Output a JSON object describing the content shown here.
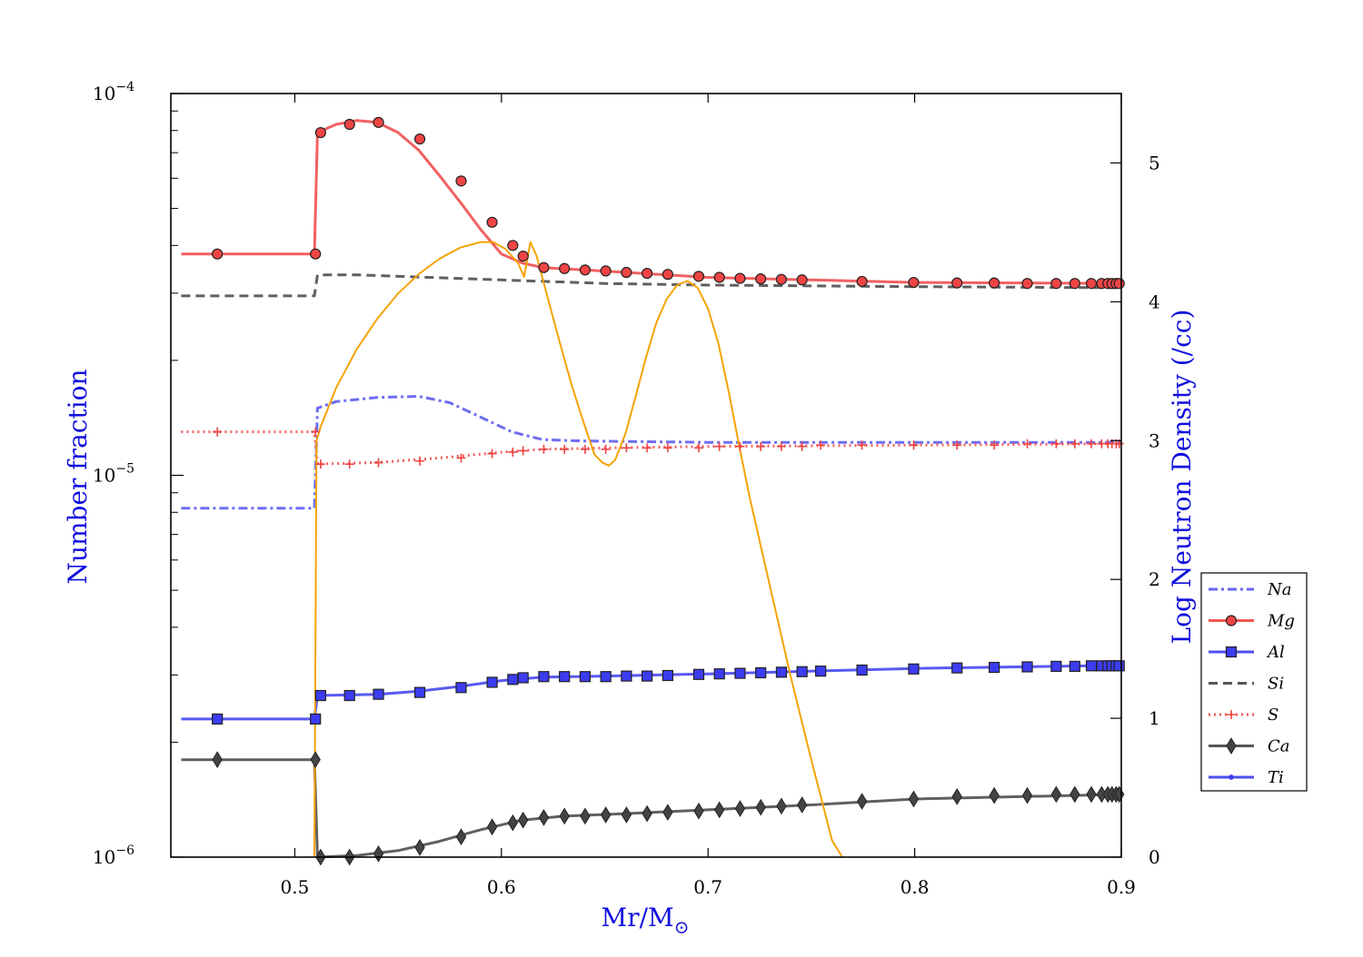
{
  "chart_data": {
    "type": "line",
    "xlabel": "Mr/M",
    "xlabel_symbol": "⊙",
    "ylabel_left": "Number fraction",
    "ylabel_right": "Log Neutron Density (/cc)",
    "xlim": [
      0.44,
      0.9
    ],
    "ylim_left": [
      1e-06,
      0.0001
    ],
    "ylim_right": [
      0,
      5.5
    ],
    "left_scale": "log",
    "x_ticks": [
      "0.5",
      "0.6",
      "0.7",
      "0.8",
      "0.9"
    ],
    "left_ticks": [
      {
        "base": "10",
        "exp": "−4"
      },
      {
        "base": "10",
        "exp": "−5"
      },
      {
        "base": "10",
        "exp": "−6"
      }
    ],
    "right_ticks": [
      "0",
      "1",
      "2",
      "3",
      "4",
      "5"
    ],
    "legend_position": "right",
    "colors": {
      "red": "#ee4444",
      "blue": "#3c3cf0",
      "gray": "#444444",
      "orange": "#f5a300"
    },
    "legend": [
      {
        "label": "Na",
        "color": "#5555f0",
        "dash": "10,4,3,4",
        "marker": "none"
      },
      {
        "label": "Mg",
        "color": "#ee4444",
        "dash": "",
        "marker": "circle"
      },
      {
        "label": "Al",
        "color": "#3c3cf0",
        "dash": "",
        "marker": "square"
      },
      {
        "label": "Si",
        "color": "#444444",
        "dash": "10,6",
        "marker": "none"
      },
      {
        "label": "S",
        "color": "#ee4444",
        "dash": "2,4",
        "marker": "plus"
      },
      {
        "label": "Ca",
        "color": "#444444",
        "dash": "",
        "marker": "diamond"
      },
      {
        "label": "Ti",
        "color": "#3c3cf0",
        "dash": "",
        "marker": "dot"
      }
    ],
    "series": [
      {
        "name": "Na",
        "axis": "left",
        "color": "#5555f0",
        "dash": "10,4,3,4",
        "marker": "none",
        "x": [
          0.445,
          0.5095,
          0.511,
          0.52,
          0.54,
          0.56,
          0.575,
          0.59,
          0.605,
          0.62,
          0.64,
          0.7,
          0.8,
          0.9
        ],
        "y": [
          8.2e-06,
          8.2e-06,
          1.5e-05,
          1.56e-05,
          1.6e-05,
          1.61e-05,
          1.55e-05,
          1.42e-05,
          1.3e-05,
          1.24e-05,
          1.23e-05,
          1.22e-05,
          1.22e-05,
          1.22e-05
        ]
      },
      {
        "name": "Mg",
        "axis": "left",
        "color": "#ee4444",
        "dash": "",
        "marker": "circle",
        "x": [
          0.445,
          0.5095,
          0.511,
          0.52,
          0.53,
          0.54,
          0.55,
          0.56,
          0.57,
          0.58,
          0.59,
          0.6,
          0.61,
          0.62,
          0.64,
          0.66,
          0.68,
          0.7,
          0.75,
          0.8,
          0.9
        ],
        "y": [
          3.8e-05,
          3.8e-05,
          7.9e-05,
          8.3e-05,
          8.5e-05,
          8.4e-05,
          7.9e-05,
          7.1e-05,
          6.1e-05,
          5.2e-05,
          4.4e-05,
          3.8e-05,
          3.6e-05,
          3.5e-05,
          3.45e-05,
          3.4e-05,
          3.35e-05,
          3.3e-05,
          3.25e-05,
          3.2e-05,
          3.18e-05
        ],
        "marker_x": [
          0.4625,
          0.51,
          0.5125,
          0.5265,
          0.5405,
          0.5605,
          0.5805,
          0.5955,
          0.6055,
          0.6105,
          0.6205,
          0.6305,
          0.6405,
          0.6505,
          0.6605,
          0.6705,
          0.6805,
          0.6955,
          0.7055,
          0.7155,
          0.7255,
          0.7355,
          0.7455,
          0.7745,
          0.7995,
          0.8205,
          0.8385,
          0.8545,
          0.8685,
          0.8775,
          0.8855,
          0.8905,
          0.8935,
          0.8955,
          0.8975,
          0.899
        ],
        "marker_y": [
          3.8e-05,
          3.8e-05,
          7.9e-05,
          8.3e-05,
          8.4e-05,
          7.6e-05,
          5.9e-05,
          4.6e-05,
          4e-05,
          3.75e-05,
          3.5e-05,
          3.48e-05,
          3.45e-05,
          3.43e-05,
          3.4e-05,
          3.38e-05,
          3.36e-05,
          3.32e-05,
          3.3e-05,
          3.28e-05,
          3.27e-05,
          3.26e-05,
          3.25e-05,
          3.22e-05,
          3.2e-05,
          3.19e-05,
          3.19e-05,
          3.18e-05,
          3.18e-05,
          3.18e-05,
          3.18e-05,
          3.18e-05,
          3.18e-05,
          3.18e-05,
          3.18e-05,
          3.18e-05
        ]
      },
      {
        "name": "Al",
        "axis": "left",
        "color": "#3c3cf0",
        "dash": "",
        "marker": "square",
        "x": [
          0.445,
          0.5095,
          0.511,
          0.54,
          0.56,
          0.58,
          0.6,
          0.62,
          0.65,
          0.7,
          0.8,
          0.9
        ],
        "y": [
          2.3e-06,
          2.3e-06,
          2.65e-06,
          2.67e-06,
          2.72e-06,
          2.8e-06,
          2.9e-06,
          2.96e-06,
          2.98e-06,
          3.02e-06,
          3.12e-06,
          3.18e-06
        ],
        "marker_x": [
          0.4625,
          0.51,
          0.5125,
          0.5265,
          0.5405,
          0.5605,
          0.5805,
          0.5955,
          0.6055,
          0.6105,
          0.6205,
          0.6305,
          0.6405,
          0.6505,
          0.6605,
          0.6705,
          0.6805,
          0.6955,
          0.7055,
          0.7155,
          0.7255,
          0.7355,
          0.7455,
          0.7545,
          0.7745,
          0.7995,
          0.8205,
          0.8385,
          0.8545,
          0.8685,
          0.8775,
          0.8855,
          0.8905,
          0.8935,
          0.8955,
          0.8975,
          0.899
        ],
        "marker_y": [
          2.3e-06,
          2.3e-06,
          2.65e-06,
          2.65e-06,
          2.67e-06,
          2.7e-06,
          2.78e-06,
          2.87e-06,
          2.92e-06,
          2.95e-06,
          2.97e-06,
          2.97e-06,
          2.97e-06,
          2.97e-06,
          2.98e-06,
          2.98e-06,
          2.99e-06,
          3.01e-06,
          3.02e-06,
          3.03e-06,
          3.04e-06,
          3.05e-06,
          3.06e-06,
          3.07e-06,
          3.09e-06,
          3.11e-06,
          3.13e-06,
          3.14e-06,
          3.15e-06,
          3.16e-06,
          3.16e-06,
          3.17e-06,
          3.17e-06,
          3.17e-06,
          3.17e-06,
          3.17e-06,
          3.17e-06
        ]
      },
      {
        "name": "Si",
        "axis": "left",
        "color": "#444444",
        "dash": "10,6",
        "marker": "none",
        "x": [
          0.445,
          0.5095,
          0.511,
          0.53,
          0.6,
          0.65,
          0.7,
          0.8,
          0.9
        ],
        "y": [
          2.95e-05,
          2.95e-05,
          3.35e-05,
          3.35e-05,
          3.25e-05,
          3.18e-05,
          3.15e-05,
          3.12e-05,
          3.1e-05
        ]
      },
      {
        "name": "S",
        "axis": "left",
        "color": "#ee4444",
        "dash": "2,4",
        "marker": "plus",
        "x": [
          0.445,
          0.5095,
          0.511,
          0.54,
          0.57,
          0.6,
          0.62,
          0.65,
          0.7,
          0.8,
          0.9
        ],
        "y": [
          1.3e-05,
          1.3e-05,
          1.07e-05,
          1.08e-05,
          1.11e-05,
          1.15e-05,
          1.17e-05,
          1.18e-05,
          1.19e-05,
          1.2e-05,
          1.21e-05
        ],
        "marker_x": [
          0.4625,
          0.51,
          0.5125,
          0.5265,
          0.5405,
          0.5605,
          0.5805,
          0.5955,
          0.6055,
          0.6105,
          0.6205,
          0.6305,
          0.6405,
          0.6505,
          0.6605,
          0.6705,
          0.6805,
          0.6955,
          0.7055,
          0.7155,
          0.7255,
          0.7355,
          0.7455,
          0.7545,
          0.7745,
          0.7995,
          0.8205,
          0.8385,
          0.8545,
          0.8685,
          0.8775,
          0.8855,
          0.8905,
          0.8935,
          0.8955,
          0.8975,
          0.899
        ],
        "marker_y": [
          1.3e-05,
          1.3e-05,
          1.07e-05,
          1.07e-05,
          1.08e-05,
          1.09e-05,
          1.11e-05,
          1.14e-05,
          1.15e-05,
          1.16e-05,
          1.17e-05,
          1.17e-05,
          1.17e-05,
          1.17e-05,
          1.18e-05,
          1.18e-05,
          1.18e-05,
          1.18e-05,
          1.19e-05,
          1.19e-05,
          1.19e-05,
          1.19e-05,
          1.19e-05,
          1.2e-05,
          1.2e-05,
          1.2e-05,
          1.2e-05,
          1.2e-05,
          1.21e-05,
          1.21e-05,
          1.21e-05,
          1.21e-05,
          1.21e-05,
          1.21e-05,
          1.21e-05,
          1.21e-05,
          1.21e-05
        ]
      },
      {
        "name": "Ca",
        "axis": "left",
        "color": "#444444",
        "dash": "",
        "marker": "diamond",
        "x": [
          0.445,
          0.5095,
          0.511,
          0.53,
          0.55,
          0.57,
          0.59,
          0.61,
          0.63,
          0.66,
          0.7,
          0.75,
          0.8,
          0.9
        ],
        "y": [
          1.8e-06,
          1.8e-06,
          1e-06,
          1.01e-06,
          1.04e-06,
          1.1e-06,
          1.18e-06,
          1.25e-06,
          1.28e-06,
          1.3e-06,
          1.33e-06,
          1.37e-06,
          1.42e-06,
          1.46e-06
        ],
        "marker_x": [
          0.4625,
          0.51,
          0.5125,
          0.5265,
          0.5405,
          0.5605,
          0.5805,
          0.5955,
          0.6055,
          0.6105,
          0.6205,
          0.6305,
          0.6405,
          0.6505,
          0.6605,
          0.6705,
          0.6805,
          0.6955,
          0.7055,
          0.7155,
          0.7255,
          0.7355,
          0.7455,
          0.7745,
          0.7995,
          0.8205,
          0.8385,
          0.8545,
          0.8685,
          0.8775,
          0.8855,
          0.8905,
          0.8935,
          0.8955,
          0.8975,
          0.899
        ],
        "marker_y": [
          1.8e-06,
          1.8e-06,
          1e-06,
          1e-06,
          1.02e-06,
          1.06e-06,
          1.13e-06,
          1.2e-06,
          1.23e-06,
          1.25e-06,
          1.27e-06,
          1.28e-06,
          1.28e-06,
          1.29e-06,
          1.29e-06,
          1.3e-06,
          1.31e-06,
          1.32e-06,
          1.33e-06,
          1.34e-06,
          1.35e-06,
          1.36e-06,
          1.37e-06,
          1.4e-06,
          1.42e-06,
          1.44e-06,
          1.45e-06,
          1.45e-06,
          1.46e-06,
          1.46e-06,
          1.46e-06,
          1.46e-06,
          1.46e-06,
          1.46e-06,
          1.46e-06,
          1.46e-06
        ]
      },
      {
        "name": "Log Neutron Density",
        "axis": "right",
        "color": "#f5a300",
        "dash": "",
        "marker": "none",
        "x": [
          0.5095,
          0.5105,
          0.5125,
          0.52,
          0.53,
          0.54,
          0.55,
          0.56,
          0.57,
          0.58,
          0.59,
          0.596,
          0.602,
          0.608,
          0.611,
          0.614,
          0.617,
          0.622,
          0.628,
          0.634,
          0.64,
          0.645,
          0.649,
          0.652,
          0.655,
          0.66,
          0.665,
          0.67,
          0.675,
          0.68,
          0.685,
          0.69,
          0.695,
          0.7,
          0.705,
          0.71,
          0.715,
          0.72,
          0.73,
          0.74,
          0.75,
          0.76,
          0.765
        ],
        "y": [
          0.0,
          3.0,
          3.1,
          3.38,
          3.66,
          3.88,
          4.06,
          4.2,
          4.31,
          4.39,
          4.43,
          4.43,
          4.38,
          4.28,
          4.18,
          4.43,
          4.33,
          4.05,
          3.72,
          3.4,
          3.12,
          2.9,
          2.84,
          2.82,
          2.86,
          3.05,
          3.32,
          3.6,
          3.85,
          4.02,
          4.12,
          4.15,
          4.1,
          3.95,
          3.7,
          3.35,
          2.97,
          2.6,
          1.95,
          1.3,
          0.7,
          0.12,
          0.0
        ]
      }
    ]
  }
}
